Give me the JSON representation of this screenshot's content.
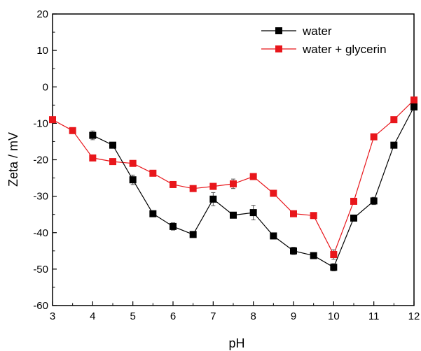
{
  "chart_data": {
    "type": "line",
    "title": "",
    "xlabel": "pH",
    "ylabel": "Zeta / mV",
    "xlim": [
      3,
      12
    ],
    "ylim": [
      -60,
      20
    ],
    "x_ticks": [
      3,
      4,
      5,
      6,
      7,
      8,
      9,
      10,
      11,
      12
    ],
    "y_ticks": [
      20,
      10,
      0,
      -10,
      -20,
      -30,
      -40,
      -50,
      -60
    ],
    "legend_position": "top-right",
    "grid": false,
    "series": [
      {
        "name": "water",
        "color": "#000000",
        "marker": "square",
        "x": [
          4,
          4.5,
          5,
          5.5,
          6,
          6.5,
          7,
          7.5,
          8,
          8.5,
          9,
          9.5,
          10,
          10.5,
          11,
          11.5,
          12
        ],
        "y": [
          -13.3,
          -16,
          -25.5,
          -34.8,
          -38.3,
          -40.5,
          -30.8,
          -35.2,
          -34.5,
          -40.9,
          -45,
          -46.3,
          -49.5,
          -36,
          -31.3,
          -16,
          -5.5
        ],
        "err": [
          1.2,
          0.5,
          1.3,
          0.6,
          1,
          0.5,
          1.8,
          0.5,
          2,
          0.5,
          1,
          0.5,
          1,
          0.6,
          1,
          0.5,
          0.6
        ]
      },
      {
        "name": "water + glycerin",
        "color": "#e8161b",
        "marker": "square",
        "x": [
          3,
          3.5,
          4,
          4.5,
          5,
          5.5,
          6,
          6.5,
          7,
          7.5,
          8,
          8.5,
          9,
          9.5,
          10,
          10.5,
          11,
          11.5,
          12
        ],
        "y": [
          -9,
          -12,
          -19.5,
          -20.5,
          -21,
          -23.7,
          -26.8,
          -27.9,
          -27.3,
          -26.6,
          -24.6,
          -29.2,
          -34.8,
          -35.3,
          -46,
          -31.4,
          -13.7,
          -9,
          -3.6
        ],
        "err": [
          0.4,
          0.4,
          0.4,
          0.4,
          0.4,
          0.4,
          0.4,
          0.4,
          0.6,
          1.3,
          0.5,
          0.4,
          0.4,
          0.4,
          1.3,
          0.4,
          0.4,
          0.4,
          0.4
        ]
      }
    ]
  }
}
